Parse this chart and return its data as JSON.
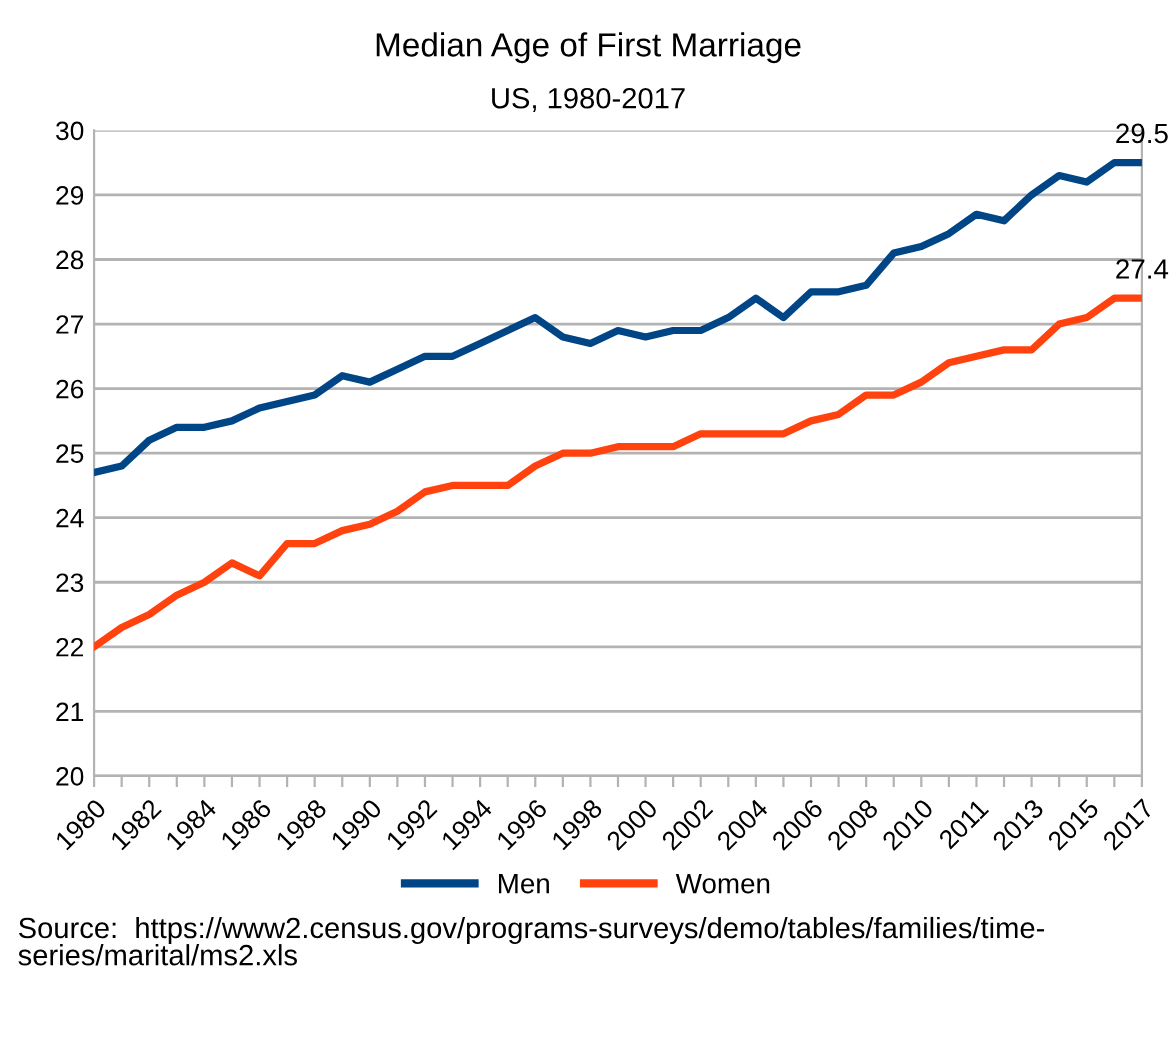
{
  "chart_data": {
    "type": "line",
    "title": "Median Age of First Marriage",
    "subtitle": "US, 1980-2017",
    "categories": [
      "1980",
      null,
      "1982",
      null,
      "1984",
      null,
      "1986",
      null,
      "1988",
      null,
      "1990",
      null,
      "1992",
      null,
      "1994",
      null,
      "1996",
      null,
      "1998",
      null,
      "2000",
      null,
      "2002",
      null,
      "2004",
      null,
      "2006",
      null,
      "2008",
      null,
      "2010",
      null,
      "2011",
      null,
      "2013",
      null,
      "2015",
      null,
      "2017"
    ],
    "series": [
      {
        "name": "Men",
        "color": "#004586",
        "values": [
          24.7,
          24.8,
          25.2,
          25.4,
          25.4,
          25.5,
          25.7,
          25.8,
          25.9,
          26.2,
          26.1,
          26.3,
          26.5,
          26.5,
          26.7,
          26.9,
          27.1,
          26.8,
          26.7,
          26.9,
          26.8,
          26.9,
          26.9,
          27.1,
          27.4,
          27.1,
          27.5,
          27.5,
          27.6,
          28.1,
          28.2,
          28.4,
          28.7,
          28.6,
          29.0,
          29.3,
          29.2,
          29.5,
          29.5
        ],
        "value_labels": [
          null,
          null,
          null,
          null,
          null,
          null,
          null,
          null,
          null,
          null,
          null,
          null,
          null,
          null,
          null,
          null,
          null,
          null,
          null,
          null,
          null,
          null,
          null,
          null,
          null,
          null,
          null,
          null,
          null,
          null,
          null,
          null,
          null,
          null,
          null,
          null,
          null,
          null,
          "29.5"
        ]
      },
      {
        "name": "Women",
        "color": "#ff420e",
        "values": [
          22.0,
          22.3,
          22.5,
          22.8,
          23.0,
          23.3,
          23.1,
          23.6,
          23.6,
          23.8,
          23.9,
          24.1,
          24.4,
          24.5,
          24.5,
          24.5,
          24.8,
          25.0,
          25.0,
          25.1,
          25.1,
          25.1,
          25.3,
          25.3,
          25.3,
          25.3,
          25.5,
          25.6,
          25.9,
          25.9,
          26.1,
          26.4,
          26.5,
          26.6,
          26.6,
          27.0,
          27.1,
          27.4,
          27.4
        ],
        "value_labels": [
          null,
          null,
          null,
          null,
          null,
          null,
          null,
          null,
          null,
          null,
          null,
          null,
          null,
          null,
          null,
          null,
          null,
          null,
          null,
          null,
          null,
          null,
          null,
          null,
          null,
          null,
          null,
          null,
          null,
          null,
          null,
          null,
          null,
          null,
          null,
          null,
          null,
          null,
          "27.4"
        ]
      }
    ],
    "ylim": [
      20,
      30
    ],
    "yticks": [
      20,
      21,
      22,
      23,
      24,
      25,
      26,
      27,
      28,
      29,
      30
    ],
    "grid": "y",
    "legend": "bottom",
    "marker": "none",
    "line_style": "solid",
    "annotations": [
      "Source:  https://www2.census.gov/programs-surveys/demo/tables/families/time-\nseries/marital/ms2.xls"
    ]
  }
}
